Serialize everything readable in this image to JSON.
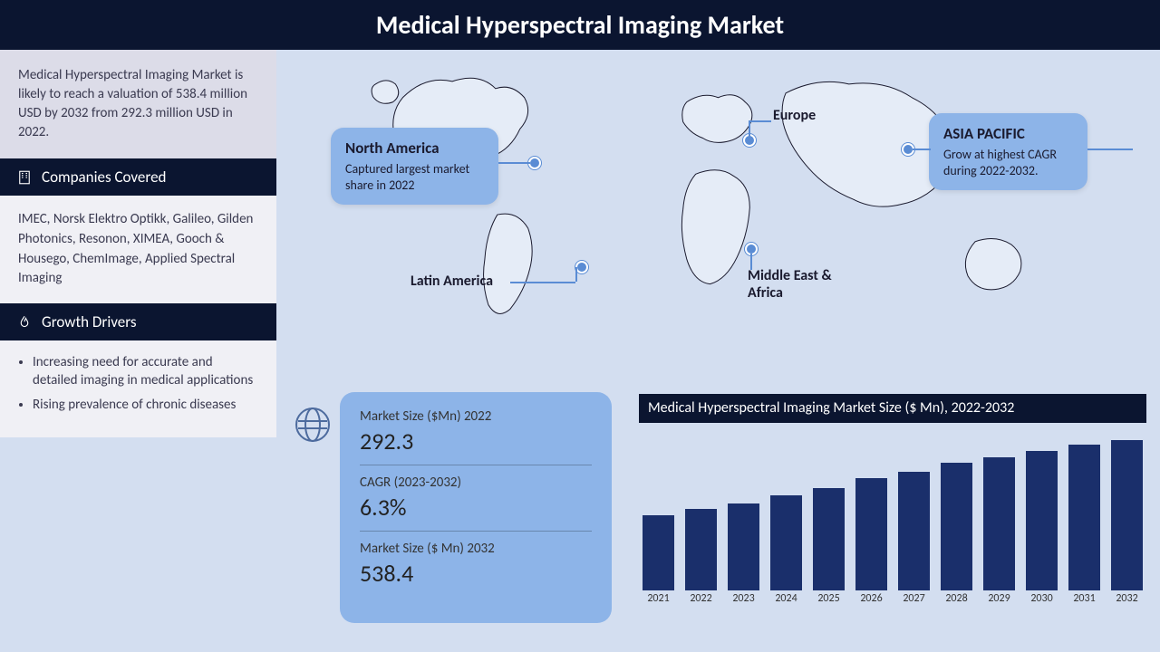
{
  "title": "Medical Hyperspectral Imaging Market",
  "summary": "Medical Hyperspectral Imaging Market is likely to reach a valuation of 538.4 million USD by 2032 from 292.3 million USD in 2022.",
  "sections": {
    "companies_header": "Companies Covered",
    "companies_body": "IMEC, Norsk Elektro Optikk, Galileo, Gilden Photonics, Resonon, XIMEA, Gooch & Housego, ChemImage, Applied Spectral Imaging",
    "drivers_header": "Growth Drivers",
    "drivers": [
      "Increasing need for accurate and detailed imaging in medical applications",
      "Rising prevalence of chronic diseases"
    ]
  },
  "regions": {
    "na": {
      "title": "North America",
      "desc": "Captured largest market share in 2022"
    },
    "la": {
      "label": "Latin America"
    },
    "eu": {
      "label": "Europe"
    },
    "apac": {
      "title": "ASIA PACIFIC",
      "desc": "Grow at highest CAGR during 2022-2032."
    },
    "mea": {
      "label": "Middle East & Africa"
    }
  },
  "kpi": {
    "size2022_label": "Market Size ($Mn) 2022",
    "size2022_value": "292.3",
    "cagr_label": "CAGR (2023-2032)",
    "cagr_value": "6.3%",
    "size2032_label": "Market Size ($ Mn) 2032",
    "size2032_value": "538.4"
  },
  "chart": {
    "type": "bar",
    "title": "Medical Hyperspectral Imaging Market Size ($ Mn), 2022-2032",
    "categories": [
      "2021",
      "2022",
      "2023",
      "2024",
      "2025",
      "2026",
      "2027",
      "2028",
      "2029",
      "2030",
      "2031",
      "2032"
    ],
    "values": [
      270,
      292.3,
      310,
      340,
      365,
      400,
      425,
      455,
      475,
      500,
      520,
      538.4
    ],
    "ylim": [
      0,
      560
    ],
    "bar_color": "#1a2f6b",
    "background_color": "#d3def0",
    "label_fontsize": 12,
    "title_bg": "#0b1530",
    "title_color": "#ffffff"
  },
  "colors": {
    "header_bg": "#0b1530",
    "callout_bg": "#8db4e8",
    "page_bg": "#d3def0",
    "sidebar_panel": "#dcdce8",
    "bar_color": "#1a2f6b",
    "marker": "#5a8cd4"
  }
}
